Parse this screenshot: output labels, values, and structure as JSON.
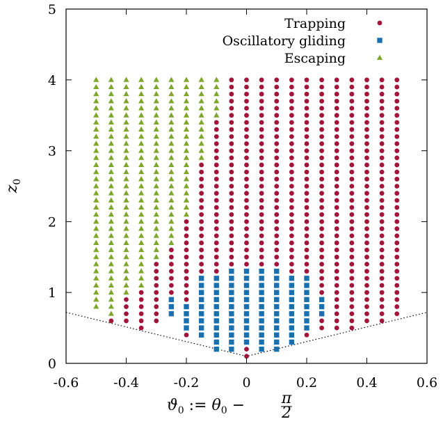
{
  "chart_data": {
    "type": "scatter",
    "xlabel": "ϑ0 := θ0 − π/2",
    "xlabel_parts": {
      "lhs": "ϑ",
      "lhs_sub": "0",
      "op": " := ",
      "rhs": "θ",
      "rhs_sub": "0",
      "minus": " − ",
      "frac_num": "π",
      "frac_den": "2"
    },
    "ylabel": "z0",
    "ylabel_parts": {
      "main": "z",
      "sub": "0"
    },
    "xlim": [
      -0.6,
      0.6
    ],
    "ylim": [
      0,
      5
    ],
    "xticks": [
      -0.6,
      -0.4,
      -0.2,
      0,
      0.2,
      0.4,
      0.6
    ],
    "xtick_labels": [
      "-0.6",
      "-0.4",
      "-0.2",
      "0",
      "0.2",
      "0.4",
      "0.6"
    ],
    "yticks": [
      0,
      1,
      2,
      3,
      4,
      5
    ],
    "ytick_labels": [
      "0",
      "1",
      "2",
      "3",
      "4",
      "5"
    ],
    "grid": false,
    "legend_position": "top-right",
    "grid_x_step": 0.05,
    "grid_z_step": 0.1,
    "series": [
      {
        "name": "Trapping",
        "marker": "circle",
        "color": "#a2153a",
        "regions": [
          {
            "x": -0.45,
            "z": [
              0.6,
              0.6
            ]
          },
          {
            "x": -0.4,
            "z": [
              0.6,
              0.9
            ]
          },
          {
            "x": -0.35,
            "z": [
              0.5,
              1.0
            ]
          },
          {
            "x": -0.3,
            "z": [
              0.6,
              1.4
            ]
          },
          {
            "x": -0.25,
            "z": [
              1.0,
              1.6
            ]
          },
          {
            "x": -0.2,
            "z": [
              0.4,
              0.4
            ]
          },
          {
            "x": -0.2,
            "z": [
              0.9,
              2.0
            ]
          },
          {
            "x": -0.15,
            "z": [
              1.3,
              2.8
            ]
          },
          {
            "x": -0.1,
            "z": [
              1.3,
              3.4
            ]
          },
          {
            "x": -0.05,
            "z": [
              1.4,
              4.0
            ]
          },
          {
            "x": 0,
            "z": [
              0.1,
              0.2
            ]
          },
          {
            "x": 0,
            "z": [
              1.4,
              4.0
            ]
          },
          {
            "x": 0.05,
            "z": [
              1.4,
              4.0
            ]
          },
          {
            "x": 0.1,
            "z": [
              1.4,
              4.0
            ]
          },
          {
            "x": 0.15,
            "z": [
              1.3,
              4.0
            ]
          },
          {
            "x": 0.2,
            "z": [
              0.4,
              0.4
            ]
          },
          {
            "x": 0.2,
            "z": [
              1.3,
              4.0
            ]
          },
          {
            "x": 0.25,
            "z": [
              0.5,
              0.6
            ]
          },
          {
            "x": 0.25,
            "z": [
              1.0,
              4.0
            ]
          },
          {
            "x": 0.3,
            "z": [
              0.5,
              4.0
            ]
          },
          {
            "x": 0.35,
            "z": [
              0.5,
              4.0
            ]
          },
          {
            "x": 0.4,
            "z": [
              0.6,
              4.0
            ]
          },
          {
            "x": 0.45,
            "z": [
              0.6,
              4.0
            ]
          },
          {
            "x": 0.5,
            "z": [
              0.7,
              4.0
            ]
          }
        ]
      },
      {
        "name": "Oscillatory gliding",
        "marker": "square",
        "color": "#1a70ae",
        "regions": [
          {
            "x": -0.25,
            "z": [
              0.7,
              0.9
            ]
          },
          {
            "x": -0.2,
            "z": [
              0.5,
              0.8
            ]
          },
          {
            "x": -0.15,
            "z": [
              0.4,
              1.2
            ]
          },
          {
            "x": -0.1,
            "z": [
              0.2,
              1.2
            ]
          },
          {
            "x": -0.05,
            "z": [
              0.2,
              1.3
            ]
          },
          {
            "x": 0,
            "z": [
              0.3,
              1.3
            ]
          },
          {
            "x": 0.05,
            "z": [
              0.2,
              1.3
            ]
          },
          {
            "x": 0.1,
            "z": [
              0.2,
              1.3
            ]
          },
          {
            "x": 0.15,
            "z": [
              0.3,
              1.2
            ]
          },
          {
            "x": 0.2,
            "z": [
              0.5,
              1.2
            ]
          },
          {
            "x": 0.25,
            "z": [
              0.7,
              0.9
            ]
          }
        ]
      },
      {
        "name": "Escaping",
        "marker": "triangle",
        "color": "#7fa62c",
        "regions": [
          {
            "x": -0.5,
            "z": [
              0.8,
              4.0
            ]
          },
          {
            "x": -0.45,
            "z": [
              0.7,
              4.0
            ]
          },
          {
            "x": -0.4,
            "z": [
              1.0,
              4.0
            ]
          },
          {
            "x": -0.35,
            "z": [
              1.1,
              4.0
            ]
          },
          {
            "x": -0.3,
            "z": [
              1.5,
              4.0
            ]
          },
          {
            "x": -0.25,
            "z": [
              1.7,
              4.0
            ]
          },
          {
            "x": -0.2,
            "z": [
              2.1,
              4.0
            ]
          },
          {
            "x": -0.15,
            "z": [
              2.9,
              4.0
            ]
          },
          {
            "x": -0.1,
            "z": [
              3.5,
              4.0
            ]
          }
        ]
      }
    ],
    "boundary_lines": [
      {
        "style": "dotted",
        "points": [
          [
            -0.6,
            0.72
          ],
          [
            0,
            0.1
          ],
          [
            0.6,
            0.72
          ]
        ]
      }
    ]
  }
}
